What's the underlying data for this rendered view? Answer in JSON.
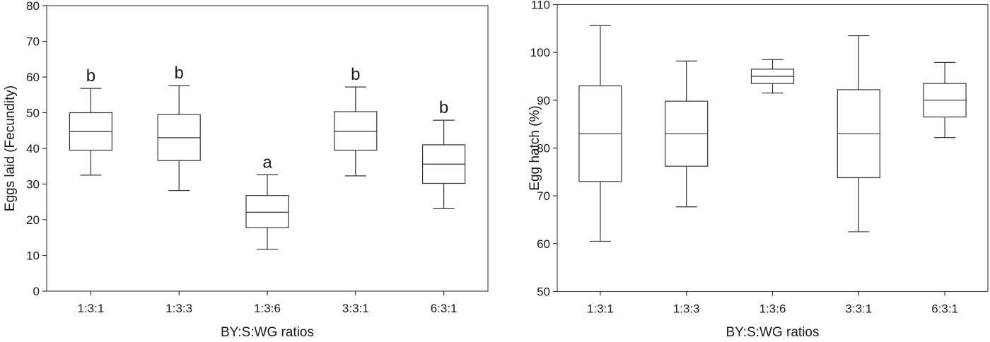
{
  "chart_data": [
    {
      "type": "box",
      "xlabel": "BY:S:WG ratios",
      "ylabel": "Eggs laid (Fecundity)",
      "ylim": [
        0,
        80
      ],
      "yticks": [
        0,
        10,
        20,
        30,
        40,
        50,
        60,
        70,
        80
      ],
      "grid": false,
      "categories": [
        "1:3:1",
        "1:3:3",
        "1:3:6",
        "3:3:1",
        "6:3:1"
      ],
      "boxes": [
        {
          "min": 32.5,
          "q1": 39.5,
          "median": 44.7,
          "q3": 50.0,
          "max": 56.8,
          "letter": "b"
        },
        {
          "min": 28.2,
          "q1": 36.6,
          "median": 43.0,
          "q3": 49.5,
          "max": 57.6,
          "letter": "b"
        },
        {
          "min": 11.7,
          "q1": 17.8,
          "median": 22.1,
          "q3": 26.8,
          "max": 32.6,
          "letter": "a"
        },
        {
          "min": 32.3,
          "q1": 39.5,
          "median": 44.8,
          "q3": 50.3,
          "max": 57.2,
          "letter": "b"
        },
        {
          "min": 23.1,
          "q1": 30.2,
          "median": 35.6,
          "q3": 41.0,
          "max": 47.9,
          "letter": "b"
        }
      ]
    },
    {
      "type": "box",
      "xlabel": "BY:S:WG ratios",
      "ylabel": "Egg hatch (%)",
      "ylim": [
        50,
        110
      ],
      "yticks": [
        50,
        60,
        70,
        80,
        90,
        100,
        110
      ],
      "grid": false,
      "categories": [
        "1:3:1",
        "1:3:3",
        "1:3:6",
        "3:3:1",
        "6:3:1"
      ],
      "boxes": [
        {
          "min": 60.5,
          "q1": 73.0,
          "median": 83.0,
          "q3": 93.0,
          "max": 105.6
        },
        {
          "min": 67.7,
          "q1": 76.2,
          "median": 83.0,
          "q3": 89.8,
          "max": 98.2
        },
        {
          "min": 91.5,
          "q1": 93.5,
          "median": 95.0,
          "q3": 96.5,
          "max": 98.5
        },
        {
          "min": 62.5,
          "q1": 73.8,
          "median": 83.0,
          "q3": 92.2,
          "max": 103.5
        },
        {
          "min": 82.2,
          "q1": 86.5,
          "median": 90.0,
          "q3": 93.5,
          "max": 97.9
        }
      ]
    }
  ]
}
